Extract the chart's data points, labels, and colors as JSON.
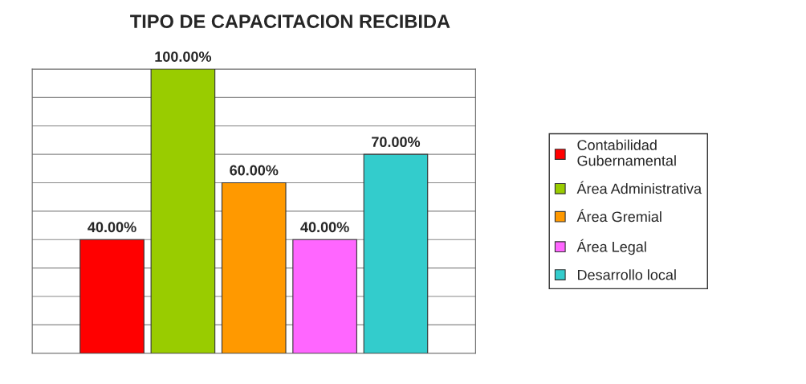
{
  "chart_data": {
    "type": "bar",
    "title": "TIPO DE CAPACITACION RECIBIDA",
    "categories": [
      null
    ],
    "series": [
      {
        "name": "Contabilidad\nGubernamental",
        "color": "#ff0000",
        "values": [
          40
        ],
        "value_labels": [
          "40.00%"
        ]
      },
      {
        "name": "Área Administrativa",
        "color": "#99cc00",
        "values": [
          100
        ],
        "value_labels": [
          "100.00%"
        ]
      },
      {
        "name": "Área Gremial",
        "color": "#ff9900",
        "values": [
          60
        ],
        "value_labels": [
          "60.00%"
        ]
      },
      {
        "name": "Área Legal",
        "color": "#ff66ff",
        "values": [
          40
        ],
        "value_labels": [
          "40.00%"
        ]
      },
      {
        "name": "Desarrollo local",
        "color": "#33cccc",
        "values": [
          70
        ],
        "value_labels": [
          "70.00%"
        ]
      }
    ],
    "ylim": [
      0,
      100
    ],
    "yticks": [
      {
        "value": 0,
        "label": null
      },
      {
        "value": 10,
        "label": null
      },
      {
        "value": 20,
        "label": null
      },
      {
        "value": 30,
        "label": null
      },
      {
        "value": 40,
        "label": null
      },
      {
        "value": 50,
        "label": null
      },
      {
        "value": 60,
        "label": null
      },
      {
        "value": 70,
        "label": null
      },
      {
        "value": 80,
        "label": null
      },
      {
        "value": 90,
        "label": null
      },
      {
        "value": 100,
        "label": null
      }
    ],
    "grid": "y",
    "legend": "right"
  }
}
